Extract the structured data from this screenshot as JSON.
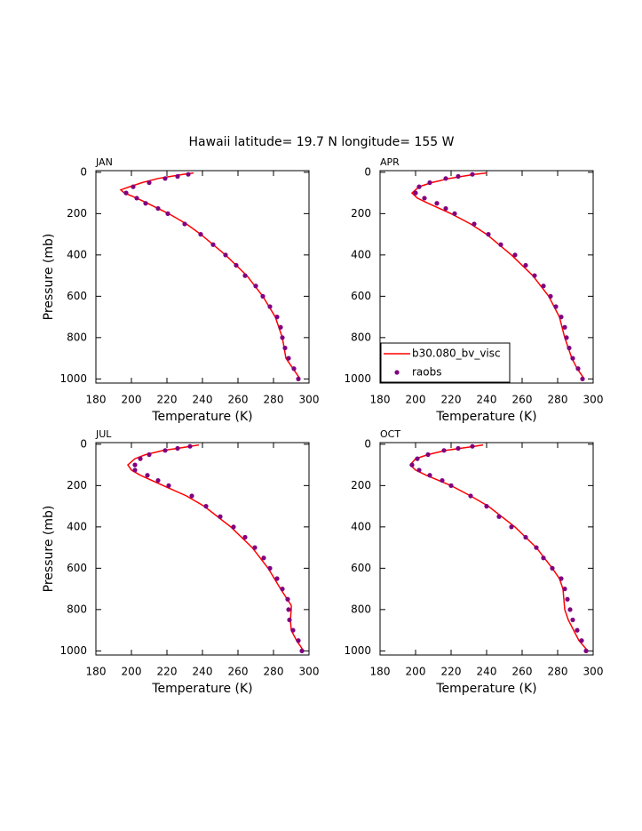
{
  "chart_data": {
    "type": "line",
    "title": "Hawaii  latitude= 19.7 N longitude= 155 W",
    "xlabel": "Temperature (K)",
    "ylabel": "Pressure (mb)",
    "xlim": [
      180,
      300
    ],
    "xticks": [
      180,
      200,
      220,
      240,
      260,
      280,
      300
    ],
    "ylim": [
      -8,
      1020
    ],
    "yticks": [
      0,
      200,
      400,
      600,
      800,
      1000
    ],
    "y_inverted": true,
    "legend_panel": 1,
    "series": [
      {
        "name": "b30.080_bv_visc",
        "color": "#ff0000",
        "style": "line"
      },
      {
        "name": "raobs",
        "color": "#800080",
        "style": "dots"
      }
    ],
    "panels": [
      {
        "label": "JAN",
        "series": [
          {
            "x": [
              235,
              229,
              222,
              215,
              206,
              199,
              194,
              196,
              203,
              209,
              221,
              231,
              239,
              253,
              265,
              274,
              281,
              285,
              286,
              287,
              291,
              295
            ],
            "y": [
              3,
              10,
              20,
              30,
              50,
              70,
              85,
              100,
              125,
              150,
              200,
              250,
              300,
              400,
              500,
              600,
              700,
              800,
              850,
              900,
              950,
              1000
            ]
          },
          {
            "x": [
              294,
              291.5,
              288.5,
              286.5,
              285,
              284,
              282,
              278,
              274,
              270,
              264,
              259,
              253,
              246,
              239,
              230,
              220.5,
              215,
              208,
              203,
              197,
              201,
              210,
              219,
              226,
              232
            ],
            "y": [
              1000,
              950,
              900,
              850,
              800,
              750,
              700,
              650,
              600,
              550,
              500,
              450,
              400,
              350,
              300,
              250,
              200,
              175,
              150,
              125,
              100,
              70,
              50,
              30,
              20,
              10
            ]
          }
        ]
      },
      {
        "label": "APR",
        "series": [
          {
            "x": [
              240,
              233,
              226,
              219,
              209,
              202,
              198,
              201,
              207,
              220,
              231,
              240,
              254,
              266,
              275,
              281,
              284,
              286,
              288,
              291,
              295
            ],
            "y": [
              3,
              10,
              20,
              30,
              50,
              70,
              100,
              125,
              150,
              200,
              250,
              300,
              400,
              500,
              600,
              700,
              800,
              850,
              900,
              950,
              1000
            ]
          },
          {
            "x": [
              294,
              291.5,
              288.5,
              286.5,
              285,
              284,
              282,
              279,
              276,
              272,
              267,
              262,
              256,
              248,
              241,
              233,
              222,
              217,
              212,
              205,
              200,
              202,
              208,
              217,
              224,
              232
            ],
            "y": [
              1000,
              950,
              900,
              850,
              800,
              750,
              700,
              650,
              600,
              550,
              500,
              450,
              400,
              350,
              300,
              250,
              200,
              175,
              150,
              125,
              100,
              70,
              50,
              30,
              20,
              10
            ]
          }
        ]
      },
      {
        "label": "JUL",
        "series": [
          {
            "x": [
              238,
              233,
              226,
              218,
              208,
              202,
              198,
              200,
              205,
              218,
              231,
              241,
              256,
              268,
              277,
              284,
              290,
              290,
              289.5,
              290,
              293,
              297
            ],
            "y": [
              3,
              10,
              20,
              30,
              50,
              70,
              100,
              125,
              150,
              200,
              250,
              300,
              400,
              500,
              600,
              700,
              780,
              800,
              850,
              900,
              950,
              1000
            ]
          },
          {
            "x": [
              296,
              294,
              291,
              289,
              288.5,
              288,
              285,
              282,
              278,
              274.5,
              269.5,
              264,
              257.5,
              250,
              242,
              234,
              221,
              215,
              209,
              202,
              202,
              205,
              210,
              219,
              226,
              233
            ],
            "y": [
              1000,
              950,
              900,
              850,
              800,
              750,
              700,
              650,
              600,
              550,
              500,
              450,
              400,
              350,
              300,
              250,
              200,
              175,
              150,
              125,
              100,
              70,
              50,
              30,
              20,
              10
            ]
          }
        ]
      },
      {
        "label": "OCT",
        "series": [
          {
            "x": [
              238,
              233,
              225,
              217,
              207,
              200,
              197,
              200,
              206,
              220,
              231,
              241,
              256,
              268,
              277,
              281,
              283,
              284,
              286,
              289,
              292,
              297
            ],
            "y": [
              3,
              10,
              20,
              30,
              50,
              70,
              100,
              125,
              150,
              200,
              250,
              300,
              400,
              500,
              600,
              650,
              700,
              800,
              850,
              900,
              950,
              1000
            ]
          },
          {
            "x": [
              296,
              293.5,
              291,
              288.5,
              287,
              285.5,
              284,
              282,
              277,
              272,
              268,
              262,
              254,
              247,
              240,
              231,
              220,
              215,
              208,
              202,
              198,
              201,
              207,
              216,
              224,
              232
            ],
            "y": [
              1000,
              950,
              900,
              850,
              800,
              750,
              700,
              650,
              600,
              550,
              500,
              450,
              400,
              350,
              300,
              250,
              200,
              175,
              150,
              125,
              100,
              70,
              50,
              30,
              20,
              10
            ]
          }
        ]
      }
    ]
  }
}
